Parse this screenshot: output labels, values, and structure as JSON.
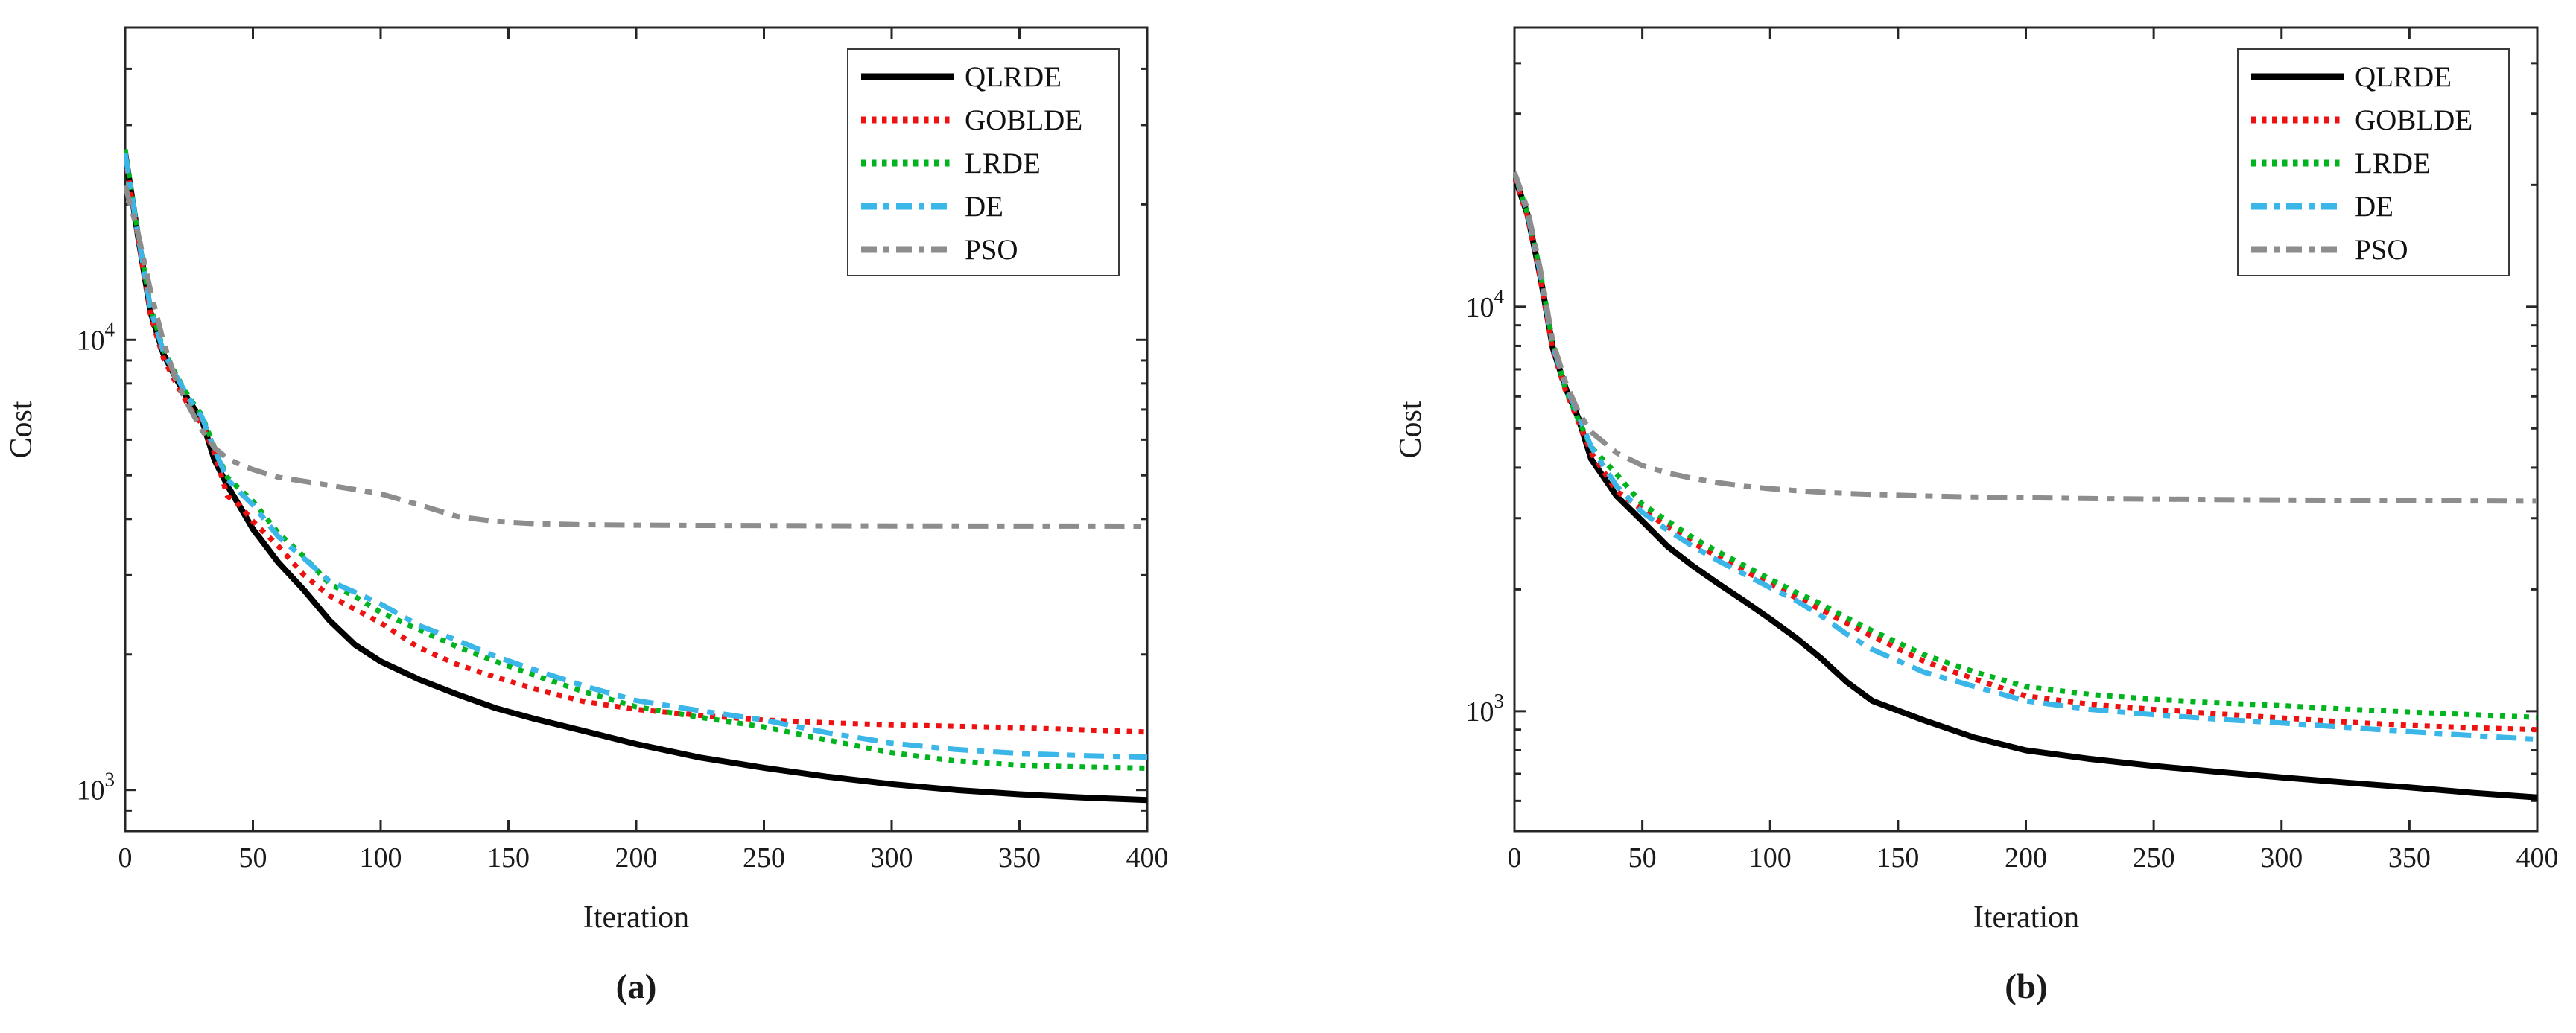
{
  "chart_data": [
    {
      "id": "a",
      "type": "line",
      "caption": "(a)",
      "xlabel": "Iteration",
      "ylabel": "Cost",
      "y_scale": "log",
      "grid": false,
      "legend_position": "top-right",
      "xlim": [
        0,
        400
      ],
      "x_ticks": [
        0,
        50,
        100,
        150,
        200,
        250,
        300,
        350,
        400
      ],
      "ylim_log": [
        810,
        49400
      ],
      "y_major_ticks": [
        1000,
        10000
      ],
      "y_tick_labels": [
        "10^3",
        "10^4"
      ],
      "x": [
        0,
        5,
        10,
        15,
        20,
        25,
        30,
        35,
        40,
        45,
        50,
        60,
        70,
        80,
        90,
        100,
        115,
        130,
        145,
        160,
        180,
        200,
        225,
        250,
        275,
        300,
        325,
        350,
        375,
        400
      ],
      "series": [
        {
          "name": "QLRDE",
          "color": "#000000",
          "style": "solid",
          "width": 8,
          "values": [
            26000,
            17000,
            11500,
            9300,
            8200,
            7300,
            6650,
            5400,
            4750,
            4250,
            3800,
            3200,
            2780,
            2380,
            2100,
            1930,
            1760,
            1630,
            1520,
            1440,
            1350,
            1265,
            1180,
            1120,
            1070,
            1030,
            1000,
            978,
            962,
            950
          ]
        },
        {
          "name": "GOBLDE",
          "color": "#ee1111",
          "style": "dotted",
          "width": 7,
          "values": [
            25500,
            16800,
            11300,
            9100,
            8000,
            7100,
            6500,
            5600,
            4500,
            4280,
            3950,
            3480,
            3000,
            2700,
            2520,
            2350,
            2070,
            1900,
            1780,
            1680,
            1570,
            1510,
            1465,
            1430,
            1410,
            1395,
            1385,
            1375,
            1360,
            1345
          ]
        },
        {
          "name": "LRDE",
          "color": "#00b41e",
          "style": "dotted",
          "width": 7,
          "values": [
            26500,
            17200,
            11800,
            9500,
            8350,
            7450,
            6800,
            5750,
            4950,
            4650,
            4380,
            3720,
            3300,
            2870,
            2690,
            2480,
            2270,
            2080,
            1930,
            1800,
            1650,
            1530,
            1450,
            1380,
            1290,
            1210,
            1160,
            1135,
            1125,
            1118
          ]
        },
        {
          "name": "DE",
          "color": "#3ab6e8",
          "style": "dash-dot",
          "width": 7,
          "values": [
            26000,
            17100,
            11700,
            9400,
            8300,
            7400,
            6750,
            5700,
            4900,
            4580,
            4300,
            3650,
            3270,
            2910,
            2750,
            2590,
            2320,
            2150,
            1980,
            1850,
            1700,
            1580,
            1500,
            1430,
            1340,
            1270,
            1230,
            1205,
            1192,
            1183
          ]
        },
        {
          "name": "PSO",
          "color": "#8d8d8d",
          "style": "dash-dot",
          "width": 7,
          "values": [
            22000,
            17300,
            12800,
            9900,
            8100,
            7100,
            6300,
            5750,
            5450,
            5280,
            5150,
            4950,
            4850,
            4750,
            4650,
            4550,
            4300,
            4050,
            3950,
            3905,
            3885,
            3875,
            3870,
            3866,
            3862,
            3860,
            3858,
            3857,
            3856,
            3855
          ]
        }
      ]
    },
    {
      "id": "b",
      "type": "line",
      "caption": "(b)",
      "xlabel": "Iteration",
      "ylabel": "Cost",
      "y_scale": "log",
      "grid": false,
      "legend_position": "top-right",
      "xlim": [
        0,
        400
      ],
      "x_ticks": [
        0,
        50,
        100,
        150,
        200,
        250,
        300,
        350,
        400
      ],
      "ylim_log": [
        505,
        49000
      ],
      "y_major_ticks": [
        1000,
        10000
      ],
      "y_tick_labels": [
        "10^3",
        "10^4"
      ],
      "x": [
        0,
        5,
        10,
        15,
        20,
        25,
        30,
        40,
        50,
        60,
        70,
        80,
        90,
        100,
        110,
        120,
        130,
        140,
        160,
        180,
        200,
        225,
        250,
        275,
        300,
        325,
        350,
        375,
        400
      ],
      "series": [
        {
          "name": "QLRDE",
          "color": "#000000",
          "style": "solid",
          "width": 8,
          "values": [
            21000,
            17000,
            12000,
            7900,
            6300,
            5300,
            4200,
            3400,
            2950,
            2550,
            2280,
            2060,
            1870,
            1690,
            1520,
            1350,
            1180,
            1060,
            950,
            860,
            800,
            762,
            732,
            708,
            686,
            666,
            648,
            628,
            612
          ]
        },
        {
          "name": "GOBLDE",
          "color": "#ee1111",
          "style": "dotted",
          "width": 7,
          "values": [
            20800,
            16800,
            11800,
            7800,
            6200,
            5200,
            4350,
            3500,
            3150,
            2850,
            2600,
            2400,
            2220,
            2060,
            1910,
            1780,
            1650,
            1530,
            1330,
            1200,
            1090,
            1040,
            1010,
            985,
            962,
            940,
            922,
            910,
            900
          ]
        },
        {
          "name": "LRDE",
          "color": "#00b41e",
          "style": "dotted",
          "width": 7,
          "values": [
            21300,
            17100,
            12300,
            8100,
            6250,
            5250,
            4500,
            3850,
            3250,
            2950,
            2680,
            2470,
            2290,
            2120,
            1970,
            1840,
            1700,
            1580,
            1380,
            1250,
            1150,
            1100,
            1070,
            1048,
            1032,
            1012,
            995,
            980,
            965
          ]
        },
        {
          "name": "DE",
          "color": "#3ab6e8",
          "style": "dash-dot",
          "width": 7,
          "values": [
            21500,
            17200,
            12200,
            8000,
            6400,
            5400,
            4500,
            3600,
            3100,
            2800,
            2550,
            2350,
            2180,
            2020,
            1880,
            1720,
            1550,
            1420,
            1250,
            1150,
            1060,
            1010,
            980,
            955,
            935,
            912,
            890,
            870,
            852
          ]
        },
        {
          "name": "PSO",
          "color": "#8d8d8d",
          "style": "dash-dot",
          "width": 7,
          "values": [
            21500,
            17500,
            12500,
            8200,
            6500,
            5500,
            4900,
            4350,
            4050,
            3880,
            3760,
            3670,
            3600,
            3550,
            3510,
            3480,
            3455,
            3435,
            3405,
            3385,
            3370,
            3355,
            3345,
            3337,
            3330,
            3323,
            3317,
            3310,
            3305
          ]
        }
      ]
    }
  ]
}
